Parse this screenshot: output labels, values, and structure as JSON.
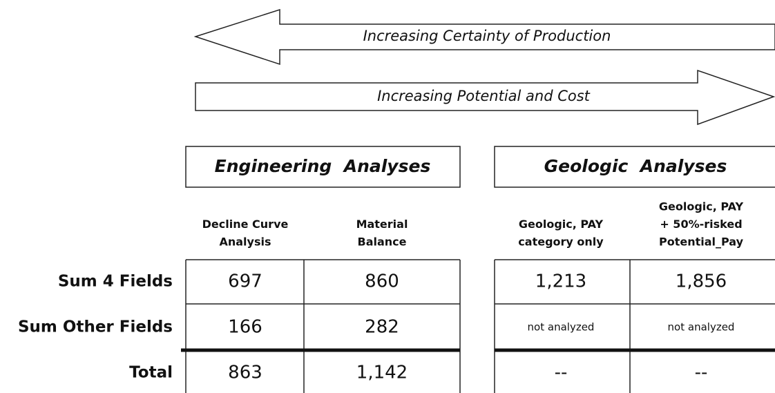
{
  "arrows": {
    "left": "Increasing Certainty of Production",
    "right": "Increasing Potential and Cost"
  },
  "groups": [
    "Engineering  Analyses",
    "Geologic  Analyses"
  ],
  "columns": [
    [
      "Decline Curve",
      "Analysis"
    ],
    [
      "Material",
      "Balance"
    ],
    [
      "Geologic, PAY",
      "category only"
    ],
    [
      "Geologic, PAY",
      "+ 50%-risked",
      "Potential_Pay"
    ]
  ],
  "rows": [
    {
      "label": "Sum 4 Fields",
      "cells": [
        "697",
        "860",
        "1,213",
        "1,856"
      ]
    },
    {
      "label": "Sum Other Fields",
      "cells": [
        "166",
        "282",
        "not analyzed",
        "not analyzed"
      ]
    },
    {
      "label": "Total",
      "cells": [
        "863",
        "1,142",
        "--",
        "--"
      ]
    }
  ]
}
